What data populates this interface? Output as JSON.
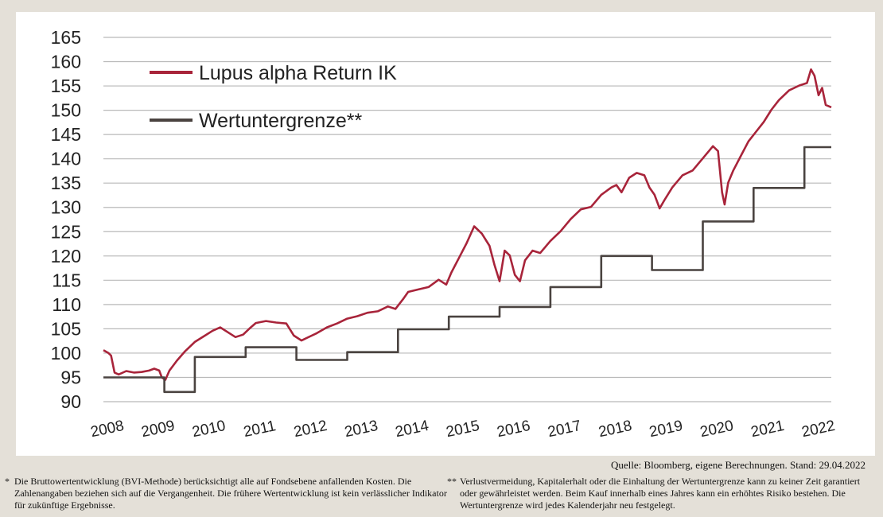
{
  "chart_data": {
    "type": "line",
    "x": [
      2008,
      2009,
      2010,
      2011,
      2012,
      2013,
      2014,
      2015,
      2016,
      2017,
      2018,
      2019,
      2020,
      2021,
      2022
    ],
    "xticks": [
      "2008",
      "2009",
      "2010",
      "2011",
      "2012",
      "2013",
      "2014",
      "2015",
      "2016",
      "2017",
      "2018",
      "2019",
      "2020",
      "2021",
      "2022"
    ],
    "xlim": [
      2008.0,
      2022.33
    ],
    "yticks": [
      "90",
      "95",
      "100",
      "105",
      "110",
      "115",
      "120",
      "125",
      "130",
      "135",
      "140",
      "145",
      "150",
      "155",
      "160",
      "165"
    ],
    "ylim": [
      90,
      165
    ],
    "grid": true,
    "legend_position": "top-left",
    "series": [
      {
        "name": "Lupus alpha Return IK",
        "color": "#a8243a",
        "points": [
          [
            2008.0,
            100.6
          ],
          [
            2008.1,
            100.0
          ],
          [
            2008.15,
            99.5
          ],
          [
            2008.22,
            96.0
          ],
          [
            2008.3,
            95.6
          ],
          [
            2008.45,
            96.3
          ],
          [
            2008.6,
            96.0
          ],
          [
            2008.75,
            96.1
          ],
          [
            2008.9,
            96.4
          ],
          [
            2009.0,
            96.8
          ],
          [
            2009.1,
            96.4
          ],
          [
            2009.15,
            95.0
          ],
          [
            2009.22,
            94.5
          ],
          [
            2009.3,
            96.4
          ],
          [
            2009.45,
            98.5
          ],
          [
            2009.6,
            100.3
          ],
          [
            2009.8,
            102.3
          ],
          [
            2010.0,
            103.6
          ],
          [
            2010.15,
            104.6
          ],
          [
            2010.3,
            105.3
          ],
          [
            2010.45,
            104.3
          ],
          [
            2010.6,
            103.3
          ],
          [
            2010.75,
            103.8
          ],
          [
            2010.9,
            105.3
          ],
          [
            2011.0,
            106.2
          ],
          [
            2011.2,
            106.6
          ],
          [
            2011.4,
            106.3
          ],
          [
            2011.6,
            106.1
          ],
          [
            2011.75,
            103.6
          ],
          [
            2011.9,
            102.6
          ],
          [
            2012.0,
            103.1
          ],
          [
            2012.2,
            104.1
          ],
          [
            2012.4,
            105.3
          ],
          [
            2012.6,
            106.1
          ],
          [
            2012.8,
            107.1
          ],
          [
            2013.0,
            107.6
          ],
          [
            2013.2,
            108.3
          ],
          [
            2013.4,
            108.6
          ],
          [
            2013.6,
            109.6
          ],
          [
            2013.75,
            109.1
          ],
          [
            2013.9,
            111.1
          ],
          [
            2014.0,
            112.6
          ],
          [
            2014.2,
            113.1
          ],
          [
            2014.4,
            113.6
          ],
          [
            2014.6,
            115.1
          ],
          [
            2014.75,
            114.1
          ],
          [
            2014.85,
            116.6
          ],
          [
            2015.0,
            119.6
          ],
          [
            2015.15,
            122.6
          ],
          [
            2015.3,
            126.1
          ],
          [
            2015.45,
            124.6
          ],
          [
            2015.6,
            122.1
          ],
          [
            2015.7,
            118.1
          ],
          [
            2015.8,
            114.8
          ],
          [
            2015.9,
            121.1
          ],
          [
            2016.0,
            120.1
          ],
          [
            2016.1,
            116.1
          ],
          [
            2016.2,
            114.8
          ],
          [
            2016.3,
            119.1
          ],
          [
            2016.45,
            121.1
          ],
          [
            2016.6,
            120.6
          ],
          [
            2016.8,
            123.1
          ],
          [
            2017.0,
            125.1
          ],
          [
            2017.2,
            127.6
          ],
          [
            2017.4,
            129.6
          ],
          [
            2017.6,
            130.1
          ],
          [
            2017.8,
            132.6
          ],
          [
            2018.0,
            134.1
          ],
          [
            2018.1,
            134.6
          ],
          [
            2018.2,
            133.1
          ],
          [
            2018.35,
            136.1
          ],
          [
            2018.5,
            137.1
          ],
          [
            2018.65,
            136.6
          ],
          [
            2018.75,
            134.1
          ],
          [
            2018.85,
            132.6
          ],
          [
            2018.95,
            129.8
          ],
          [
            2019.05,
            131.6
          ],
          [
            2019.2,
            134.1
          ],
          [
            2019.4,
            136.6
          ],
          [
            2019.6,
            137.6
          ],
          [
            2019.8,
            140.1
          ],
          [
            2020.0,
            142.6
          ],
          [
            2020.1,
            141.6
          ],
          [
            2020.18,
            133.1
          ],
          [
            2020.23,
            130.6
          ],
          [
            2020.3,
            135.1
          ],
          [
            2020.4,
            137.6
          ],
          [
            2020.55,
            140.6
          ],
          [
            2020.7,
            143.6
          ],
          [
            2020.85,
            145.6
          ],
          [
            2021.0,
            147.6
          ],
          [
            2021.15,
            150.1
          ],
          [
            2021.3,
            152.1
          ],
          [
            2021.5,
            154.1
          ],
          [
            2021.7,
            155.1
          ],
          [
            2021.85,
            155.6
          ],
          [
            2021.93,
            158.4
          ],
          [
            2022.0,
            157.1
          ],
          [
            2022.08,
            153.1
          ],
          [
            2022.15,
            154.6
          ],
          [
            2022.22,
            151.1
          ],
          [
            2022.33,
            150.6
          ]
        ]
      },
      {
        "name": "Wertuntergrenze**",
        "color": "#4a4340",
        "points": [
          [
            2008.0,
            95.0
          ],
          [
            2009.2,
            95.0
          ],
          [
            2009.2,
            92.0
          ],
          [
            2009.8,
            92.0
          ],
          [
            2009.8,
            99.2
          ],
          [
            2010.8,
            99.2
          ],
          [
            2010.8,
            101.2
          ],
          [
            2011.8,
            101.2
          ],
          [
            2011.8,
            98.6
          ],
          [
            2012.8,
            98.6
          ],
          [
            2012.8,
            100.2
          ],
          [
            2013.8,
            100.2
          ],
          [
            2013.8,
            104.9
          ],
          [
            2014.8,
            104.9
          ],
          [
            2014.8,
            107.5
          ],
          [
            2015.8,
            107.5
          ],
          [
            2015.8,
            109.5
          ],
          [
            2016.8,
            109.5
          ],
          [
            2016.8,
            113.6
          ],
          [
            2017.8,
            113.6
          ],
          [
            2017.8,
            120.0
          ],
          [
            2018.8,
            120.0
          ],
          [
            2018.8,
            117.1
          ],
          [
            2019.8,
            117.1
          ],
          [
            2019.8,
            127.1
          ],
          [
            2020.8,
            127.1
          ],
          [
            2020.8,
            134.0
          ],
          [
            2021.8,
            134.0
          ],
          [
            2021.8,
            142.4
          ],
          [
            2022.33,
            142.4
          ]
        ]
      }
    ]
  },
  "source": "Quelle: Bloomberg, eigene Berechnungen. Stand: 29.04.2022",
  "footnotes": [
    {
      "mark": "*",
      "text": "Die Bruttowertentwicklung (BVI-Methode) berücksichtigt alle auf Fondsebene anfallenden Kosten. Die Zahlenangaben beziehen sich auf die Vergangenheit. Die frühere Wertentwicklung ist kein verlässlicher Indikator für zukünftige Ergebnisse."
    },
    {
      "mark": "**",
      "text": "Verlustvermeidung, Kapitalerhalt oder die Einhaltung der Wertuntergrenze kann zu keiner Zeit garantiert oder gewährleistet werden. Beim Kauf innerhalb eines Jahres kann ein erhöhtes Risiko bestehen. Die Wertuntergrenze wird jedes Kalenderjahr neu festgelegt."
    }
  ]
}
